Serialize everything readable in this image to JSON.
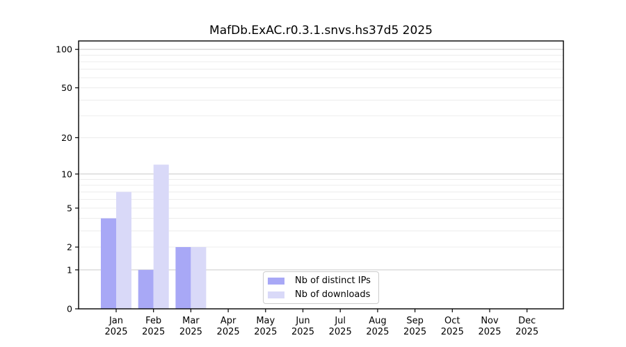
{
  "chart_data": {
    "type": "bar",
    "title": "MafDb.ExAC.r0.3.1.snvs.hs37d5 2025",
    "categories": [
      "Jan",
      "Feb",
      "Mar",
      "Apr",
      "May",
      "Jun",
      "Jul",
      "Aug",
      "Sep",
      "Oct",
      "Nov",
      "Dec"
    ],
    "year_label": "2025",
    "series": [
      {
        "name": "Nb of distinct IPs",
        "color": "#a8a8f6",
        "values": [
          4,
          1,
          2,
          0,
          0,
          0,
          0,
          0,
          0,
          0,
          0,
          0
        ]
      },
      {
        "name": "Nb of downloads",
        "color": "#d9d9f8",
        "values": [
          7,
          12,
          2,
          0,
          0,
          0,
          0,
          0,
          0,
          0,
          0,
          0
        ]
      }
    ],
    "yscale": "log1p",
    "ylim": [
      0,
      110
    ],
    "yticks": [
      0,
      1,
      2,
      5,
      10,
      20,
      50,
      100
    ],
    "ytick_major_grid": [
      1,
      10,
      100
    ],
    "ytick_minor_grid": [
      2,
      3,
      4,
      5,
      6,
      7,
      8,
      9,
      20,
      30,
      40,
      50,
      60,
      70,
      80,
      90
    ],
    "grid": "horizontal",
    "legend_position": "bottom-center"
  },
  "legend": {
    "items": [
      {
        "label": "Nb of distinct IPs",
        "color": "#a8a8f6"
      },
      {
        "label": "Nb of downloads",
        "color": "#d9d9f8"
      }
    ]
  },
  "colors": {
    "background": "#ffffff",
    "bar_distinct_ips": "#a8a8f6",
    "bar_downloads": "#d9d9f8",
    "major_grid": "#c9c9c9",
    "minor_grid": "#ececec",
    "axis": "#000000",
    "legend_border": "#cccccc",
    "text": "#000000"
  }
}
